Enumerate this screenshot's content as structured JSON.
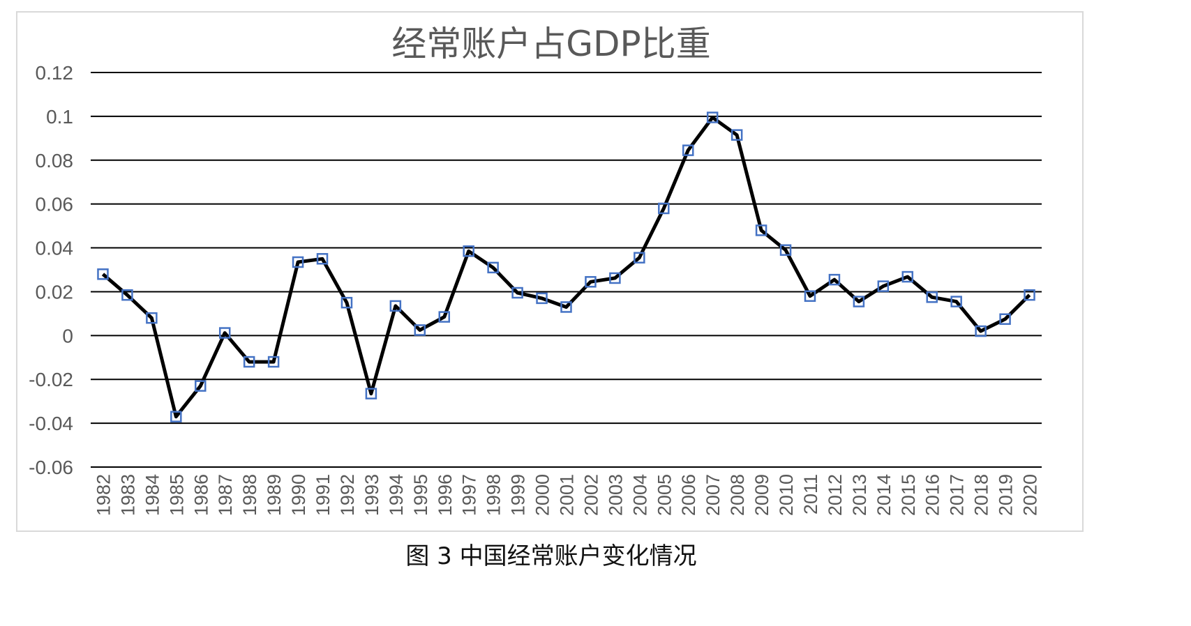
{
  "chart_data": {
    "type": "line",
    "title": "经常账户占GDP比重",
    "xlabel": "",
    "ylabel": "",
    "ylim": [
      -0.06,
      0.12
    ],
    "yticks": [
      "0.12",
      "0.1",
      "0.08",
      "0.06",
      "0.04",
      "0.02",
      "0",
      "-0.02",
      "-0.04",
      "-0.06"
    ],
    "grid": true,
    "legend": "none",
    "line_color": "#000000",
    "marker_color": "#4472c4",
    "categories": [
      "1982",
      "1983",
      "1984",
      "1985",
      "1986",
      "1987",
      "1988",
      "1989",
      "1990",
      "1991",
      "1992",
      "1993",
      "1994",
      "1995",
      "1996",
      "1997",
      "1998",
      "1999",
      "2000",
      "2001",
      "2002",
      "2003",
      "2004",
      "2005",
      "2006",
      "2007",
      "2008",
      "2009",
      "2010",
      "2011",
      "2012",
      "2013",
      "2014",
      "2015",
      "2016",
      "2017",
      "2018",
      "2019",
      "2020"
    ],
    "series": [
      {
        "values": [
          0.028,
          0.0185,
          0.008,
          -0.037,
          -0.023,
          0.0012,
          -0.012,
          -0.012,
          0.0335,
          0.035,
          0.015,
          -0.0265,
          0.0135,
          0.0025,
          0.0085,
          0.0385,
          0.031,
          0.0195,
          0.017,
          0.013,
          0.0245,
          0.0262,
          0.0355,
          0.058,
          0.0845,
          0.0995,
          0.0915,
          0.048,
          0.039,
          0.018,
          0.0255,
          0.0155,
          0.0225,
          0.0268,
          0.0175,
          0.0155,
          0.002,
          0.0075,
          0.0185
        ]
      }
    ]
  },
  "caption": "图 3  中国经常账户变化情况"
}
